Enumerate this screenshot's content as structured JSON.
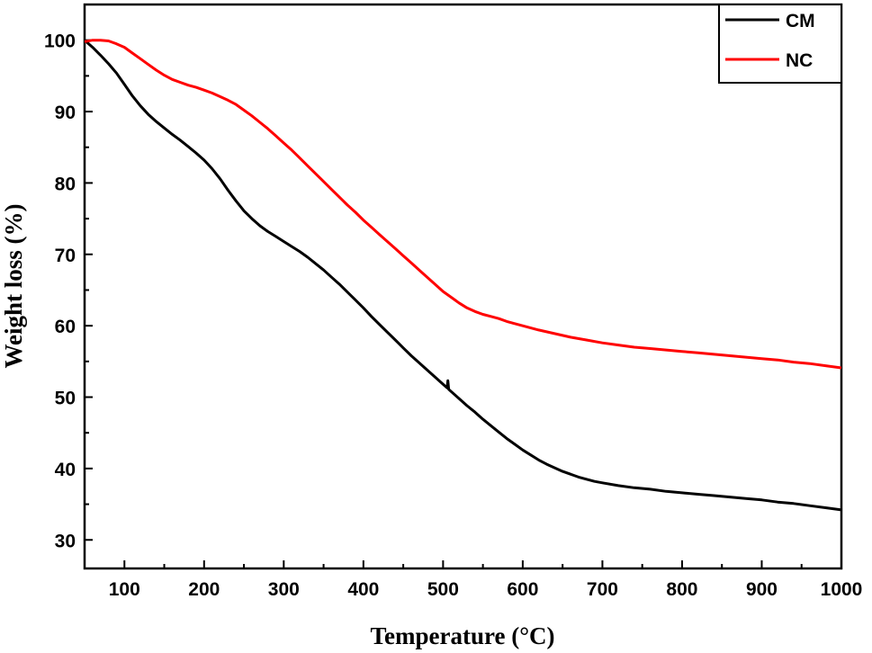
{
  "chart_data": {
    "type": "line",
    "title": "",
    "xlabel": "Temperature (°C)",
    "ylabel": "Weight loss  (%)",
    "xlim": [
      50,
      1000
    ],
    "ylim": [
      26,
      105
    ],
    "xticks": [
      100,
      200,
      300,
      400,
      500,
      600,
      700,
      800,
      900,
      1000
    ],
    "yticks": [
      30,
      40,
      50,
      60,
      70,
      80,
      90,
      100
    ],
    "grid": false,
    "legend": {
      "position": "top-right"
    },
    "series": [
      {
        "name": "CM",
        "color": "#000000",
        "points": [
          [
            50,
            100
          ],
          [
            60,
            99
          ],
          [
            70,
            97.9
          ],
          [
            80,
            96.7
          ],
          [
            90,
            95.4
          ],
          [
            100,
            93.8
          ],
          [
            110,
            92.2
          ],
          [
            120,
            90.8
          ],
          [
            130,
            89.6
          ],
          [
            140,
            88.6
          ],
          [
            150,
            87.7
          ],
          [
            160,
            86.8
          ],
          [
            170,
            86
          ],
          [
            180,
            85.1
          ],
          [
            190,
            84.2
          ],
          [
            200,
            83.2
          ],
          [
            210,
            82
          ],
          [
            220,
            80.6
          ],
          [
            230,
            79
          ],
          [
            240,
            77.5
          ],
          [
            250,
            76.1
          ],
          [
            260,
            75
          ],
          [
            270,
            74
          ],
          [
            280,
            73.2
          ],
          [
            290,
            72.5
          ],
          [
            300,
            71.8
          ],
          [
            310,
            71.1
          ],
          [
            320,
            70.4
          ],
          [
            330,
            69.6
          ],
          [
            340,
            68.7
          ],
          [
            350,
            67.8
          ],
          [
            360,
            66.8
          ],
          [
            370,
            65.8
          ],
          [
            380,
            64.7
          ],
          [
            390,
            63.6
          ],
          [
            400,
            62.5
          ],
          [
            410,
            61.3
          ],
          [
            420,
            60.2
          ],
          [
            430,
            59.1
          ],
          [
            440,
            58
          ],
          [
            450,
            56.9
          ],
          [
            460,
            55.8
          ],
          [
            470,
            54.8
          ],
          [
            480,
            53.8
          ],
          [
            490,
            52.8
          ],
          [
            500,
            51.8
          ],
          [
            505,
            51.3
          ],
          [
            506,
            52.3
          ],
          [
            507,
            51.1
          ],
          [
            510,
            50.8
          ],
          [
            520,
            49.8
          ],
          [
            530,
            48.8
          ],
          [
            540,
            47.9
          ],
          [
            550,
            46.9
          ],
          [
            560,
            46
          ],
          [
            570,
            45.1
          ],
          [
            580,
            44.2
          ],
          [
            590,
            43.4
          ],
          [
            600,
            42.6
          ],
          [
            610,
            41.9
          ],
          [
            620,
            41.2
          ],
          [
            630,
            40.6
          ],
          [
            640,
            40.1
          ],
          [
            650,
            39.6
          ],
          [
            660,
            39.2
          ],
          [
            670,
            38.8
          ],
          [
            680,
            38.5
          ],
          [
            690,
            38.2
          ],
          [
            700,
            38
          ],
          [
            720,
            37.6
          ],
          [
            740,
            37.3
          ],
          [
            760,
            37.1
          ],
          [
            780,
            36.8
          ],
          [
            800,
            36.6
          ],
          [
            820,
            36.4
          ],
          [
            840,
            36.2
          ],
          [
            860,
            36
          ],
          [
            880,
            35.8
          ],
          [
            900,
            35.6
          ],
          [
            920,
            35.3
          ],
          [
            940,
            35.1
          ],
          [
            960,
            34.8
          ],
          [
            980,
            34.5
          ],
          [
            1000,
            34.2
          ]
        ]
      },
      {
        "name": "NC",
        "color": "#ff0000",
        "points": [
          [
            50,
            99.8
          ],
          [
            60,
            100
          ],
          [
            70,
            100
          ],
          [
            80,
            99.9
          ],
          [
            90,
            99.5
          ],
          [
            100,
            99
          ],
          [
            110,
            98.2
          ],
          [
            120,
            97.4
          ],
          [
            130,
            96.6
          ],
          [
            140,
            95.8
          ],
          [
            150,
            95.1
          ],
          [
            160,
            94.5
          ],
          [
            170,
            94.1
          ],
          [
            180,
            93.7
          ],
          [
            190,
            93.4
          ],
          [
            200,
            93
          ],
          [
            210,
            92.6
          ],
          [
            220,
            92.1
          ],
          [
            230,
            91.6
          ],
          [
            240,
            91
          ],
          [
            250,
            90.2
          ],
          [
            260,
            89.4
          ],
          [
            270,
            88.5
          ],
          [
            280,
            87.6
          ],
          [
            290,
            86.6
          ],
          [
            300,
            85.6
          ],
          [
            310,
            84.6
          ],
          [
            320,
            83.5
          ],
          [
            330,
            82.4
          ],
          [
            340,
            81.3
          ],
          [
            350,
            80.2
          ],
          [
            360,
            79.1
          ],
          [
            370,
            78
          ],
          [
            380,
            76.9
          ],
          [
            390,
            75.9
          ],
          [
            400,
            74.8
          ],
          [
            410,
            73.8
          ],
          [
            420,
            72.8
          ],
          [
            430,
            71.8
          ],
          [
            440,
            70.8
          ],
          [
            450,
            69.8
          ],
          [
            460,
            68.8
          ],
          [
            470,
            67.8
          ],
          [
            480,
            66.8
          ],
          [
            490,
            65.8
          ],
          [
            500,
            64.8
          ],
          [
            510,
            64
          ],
          [
            520,
            63.2
          ],
          [
            530,
            62.5
          ],
          [
            540,
            62
          ],
          [
            550,
            61.6
          ],
          [
            560,
            61.3
          ],
          [
            570,
            61
          ],
          [
            580,
            60.6
          ],
          [
            590,
            60.3
          ],
          [
            600,
            60
          ],
          [
            620,
            59.4
          ],
          [
            640,
            58.9
          ],
          [
            660,
            58.4
          ],
          [
            680,
            58
          ],
          [
            700,
            57.6
          ],
          [
            720,
            57.3
          ],
          [
            740,
            57
          ],
          [
            760,
            56.8
          ],
          [
            780,
            56.6
          ],
          [
            800,
            56.4
          ],
          [
            820,
            56.2
          ],
          [
            840,
            56
          ],
          [
            860,
            55.8
          ],
          [
            880,
            55.6
          ],
          [
            900,
            55.4
          ],
          [
            920,
            55.2
          ],
          [
            940,
            54.9
          ],
          [
            960,
            54.7
          ],
          [
            980,
            54.4
          ],
          [
            1000,
            54.1
          ]
        ]
      }
    ]
  }
}
